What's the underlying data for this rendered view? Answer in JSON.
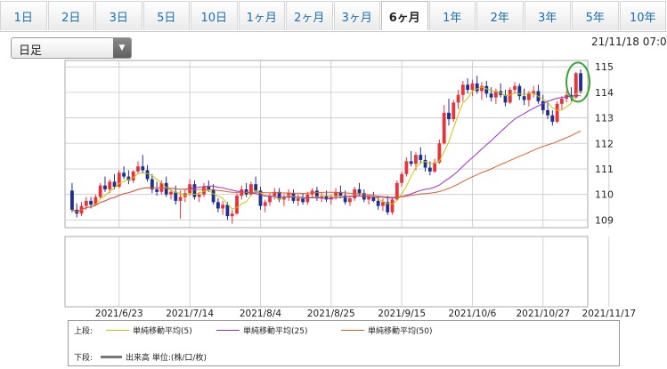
{
  "tabs": [
    {
      "label": "1日",
      "active": false
    },
    {
      "label": "2日",
      "active": false
    },
    {
      "label": "3日",
      "active": false
    },
    {
      "label": "5日",
      "active": false
    },
    {
      "label": "10日",
      "active": false
    },
    {
      "label": "1ヶ月",
      "active": false
    },
    {
      "label": "2ヶ月",
      "active": false
    },
    {
      "label": "3ヶ月",
      "active": false
    },
    {
      "label": "6ヶ月",
      "active": true
    },
    {
      "label": "1年",
      "active": false
    },
    {
      "label": "2年",
      "active": false
    },
    {
      "label": "3年",
      "active": false
    },
    {
      "label": "5年",
      "active": false
    },
    {
      "label": "10年",
      "active": false
    }
  ],
  "period_select": {
    "value": "日足"
  },
  "timestamp": "21/11/18 07:0",
  "legend": {
    "upper_label": "上段:",
    "lower_label": "下段:",
    "ma5": "単純移動平均(5)",
    "ma25": "単純移動平均(25)",
    "ma50": "単純移動平均(50)",
    "volume": "出来高 単位:(株/口/枚)"
  },
  "colors": {
    "up": "#e8323c",
    "down": "#1e2f8f",
    "ma5": "#c8c800",
    "ma25": "#9b30d6",
    "ma50": "#e0602c",
    "highlight": "#3aa33a",
    "grid": "#c8c8c8"
  },
  "chart_data": {
    "type": "candlestick",
    "ylim": [
      108.7,
      115.25
    ],
    "yticks": [
      109,
      110,
      111,
      112,
      113,
      114,
      115
    ],
    "xticks": [
      "2021/6/23",
      "2021/7/14",
      "2021/8/4",
      "2021/8/25",
      "2021/9/15",
      "2021/10/6",
      "2021/10/27",
      "2021/11/17"
    ],
    "xtick_index": [
      10,
      25,
      40,
      55,
      70,
      85,
      100,
      114
    ],
    "candles": [
      [
        110.15,
        110.45,
        109.3,
        109.4
      ],
      [
        109.4,
        109.65,
        109.1,
        109.25
      ],
      [
        109.25,
        109.7,
        109.15,
        109.55
      ],
      [
        109.55,
        109.9,
        109.4,
        109.75
      ],
      [
        109.75,
        109.9,
        109.45,
        109.6
      ],
      [
        109.6,
        110.0,
        109.55,
        109.9
      ],
      [
        109.9,
        110.45,
        109.85,
        110.35
      ],
      [
        110.35,
        110.7,
        110.1,
        110.2
      ],
      [
        110.2,
        110.6,
        110.05,
        110.5
      ],
      [
        110.5,
        110.8,
        110.2,
        110.3
      ],
      [
        110.3,
        110.95,
        110.25,
        110.85
      ],
      [
        110.85,
        111.1,
        110.6,
        110.7
      ],
      [
        110.7,
        110.95,
        110.4,
        110.55
      ],
      [
        110.55,
        110.95,
        110.45,
        110.9
      ],
      [
        110.9,
        111.3,
        110.8,
        111.1
      ],
      [
        111.1,
        111.55,
        110.85,
        110.95
      ],
      [
        110.95,
        111.15,
        110.5,
        110.6
      ],
      [
        110.6,
        110.8,
        110.05,
        110.2
      ],
      [
        110.2,
        110.5,
        109.95,
        110.1
      ],
      [
        110.1,
        110.55,
        110.0,
        110.45
      ],
      [
        110.45,
        110.7,
        109.9,
        110.0
      ],
      [
        110.0,
        110.2,
        109.8,
        110.1
      ],
      [
        110.1,
        110.35,
        109.6,
        109.75
      ],
      [
        109.75,
        110.15,
        109.05,
        109.9
      ],
      [
        109.9,
        110.2,
        109.7,
        110.05
      ],
      [
        110.05,
        110.6,
        109.95,
        110.4
      ],
      [
        110.4,
        110.55,
        109.8,
        109.9
      ],
      [
        109.9,
        110.1,
        109.7,
        110.0
      ],
      [
        110.0,
        110.45,
        109.9,
        110.3
      ],
      [
        110.3,
        110.55,
        110.1,
        110.2
      ],
      [
        110.2,
        110.4,
        109.6,
        109.7
      ],
      [
        109.7,
        109.85,
        109.3,
        109.45
      ],
      [
        109.45,
        109.75,
        109.2,
        109.6
      ],
      [
        109.6,
        109.7,
        109.0,
        109.15
      ],
      [
        109.15,
        109.4,
        108.85,
        109.25
      ],
      [
        109.25,
        110.05,
        109.2,
        109.95
      ],
      [
        109.95,
        110.35,
        109.8,
        110.2
      ],
      [
        110.2,
        110.45,
        109.9,
        110.0
      ],
      [
        110.0,
        110.5,
        109.95,
        110.4
      ],
      [
        110.4,
        110.7,
        110.05,
        110.15
      ],
      [
        110.15,
        110.3,
        109.4,
        109.55
      ],
      [
        109.55,
        109.8,
        109.3,
        109.7
      ],
      [
        109.7,
        110.05,
        109.55,
        109.95
      ],
      [
        109.95,
        110.25,
        109.8,
        110.1
      ],
      [
        110.1,
        110.25,
        109.7,
        109.8
      ],
      [
        109.8,
        110.0,
        109.55,
        109.9
      ],
      [
        109.9,
        110.2,
        109.75,
        110.05
      ],
      [
        110.05,
        110.2,
        109.65,
        109.75
      ],
      [
        109.75,
        110.0,
        109.55,
        109.85
      ],
      [
        109.85,
        110.05,
        109.6,
        109.7
      ],
      [
        109.7,
        110.1,
        109.6,
        110.0
      ],
      [
        110.0,
        110.25,
        109.85,
        110.15
      ],
      [
        110.15,
        110.3,
        109.75,
        109.85
      ],
      [
        109.85,
        110.05,
        109.7,
        109.95
      ],
      [
        109.95,
        110.15,
        109.7,
        109.8
      ],
      [
        109.8,
        110.0,
        109.6,
        109.9
      ],
      [
        109.9,
        110.25,
        109.8,
        110.1
      ],
      [
        110.1,
        110.35,
        109.85,
        109.95
      ],
      [
        109.95,
        110.15,
        109.6,
        109.7
      ],
      [
        109.7,
        109.95,
        109.55,
        109.85
      ],
      [
        109.85,
        110.3,
        109.75,
        110.2
      ],
      [
        110.2,
        110.45,
        109.95,
        110.05
      ],
      [
        110.05,
        110.2,
        109.7,
        109.8
      ],
      [
        109.8,
        110.0,
        109.6,
        109.9
      ],
      [
        109.9,
        110.1,
        109.7,
        109.75
      ],
      [
        109.75,
        109.95,
        109.4,
        109.55
      ],
      [
        109.55,
        109.85,
        109.35,
        109.7
      ],
      [
        109.7,
        109.95,
        109.2,
        109.3
      ],
      [
        109.3,
        109.9,
        109.2,
        109.8
      ],
      [
        109.8,
        110.55,
        109.75,
        110.45
      ],
      [
        110.45,
        110.9,
        110.3,
        110.8
      ],
      [
        110.8,
        111.45,
        110.7,
        111.3
      ],
      [
        111.3,
        111.7,
        111.1,
        111.2
      ],
      [
        111.2,
        111.65,
        110.95,
        111.55
      ],
      [
        111.55,
        111.85,
        111.2,
        111.35
      ],
      [
        111.35,
        111.55,
        110.9,
        111.05
      ],
      [
        111.05,
        111.3,
        110.75,
        110.9
      ],
      [
        110.9,
        111.4,
        110.85,
        111.25
      ],
      [
        111.25,
        112.15,
        111.2,
        112.0
      ],
      [
        112.0,
        113.5,
        111.95,
        113.2
      ],
      [
        113.2,
        113.75,
        112.7,
        112.95
      ],
      [
        112.95,
        113.7,
        112.85,
        113.6
      ],
      [
        113.6,
        114.1,
        113.35,
        113.9
      ],
      [
        113.9,
        114.45,
        113.65,
        114.3
      ],
      [
        114.3,
        114.55,
        113.95,
        114.1
      ],
      [
        114.1,
        114.5,
        113.85,
        114.35
      ],
      [
        114.35,
        114.65,
        113.95,
        114.05
      ],
      [
        114.05,
        114.4,
        113.7,
        114.25
      ],
      [
        114.25,
        114.45,
        113.8,
        113.95
      ],
      [
        113.95,
        114.2,
        113.65,
        113.8
      ],
      [
        113.8,
        114.15,
        113.55,
        114.05
      ],
      [
        114.05,
        114.35,
        113.8,
        113.9
      ],
      [
        113.9,
        114.1,
        113.45,
        113.6
      ],
      [
        113.6,
        114.2,
        113.55,
        114.1
      ],
      [
        114.1,
        114.4,
        113.95,
        114.25
      ],
      [
        114.25,
        114.35,
        113.7,
        113.85
      ],
      [
        113.85,
        114.15,
        113.5,
        113.7
      ],
      [
        113.7,
        114.05,
        113.45,
        113.95
      ],
      [
        113.95,
        114.25,
        113.8,
        114.05
      ],
      [
        114.05,
        114.3,
        113.55,
        113.65
      ],
      [
        113.65,
        113.9,
        113.15,
        113.3
      ],
      [
        113.3,
        113.6,
        112.95,
        113.1
      ],
      [
        113.1,
        113.3,
        112.7,
        112.85
      ],
      [
        112.85,
        113.65,
        112.8,
        113.55
      ],
      [
        113.55,
        113.85,
        113.3,
        113.75
      ],
      [
        113.75,
        114.05,
        113.6,
        113.9
      ],
      [
        113.9,
        114.2,
        113.65,
        113.8
      ],
      [
        113.8,
        114.8,
        113.75,
        114.75
      ],
      [
        114.75,
        114.9,
        113.95,
        114.05
      ]
    ]
  }
}
